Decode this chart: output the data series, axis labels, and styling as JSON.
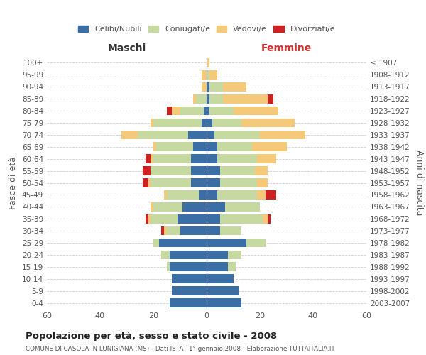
{
  "age_groups": [
    "0-4",
    "5-9",
    "10-14",
    "15-19",
    "20-24",
    "25-29",
    "30-34",
    "35-39",
    "40-44",
    "45-49",
    "50-54",
    "55-59",
    "60-64",
    "65-69",
    "70-74",
    "75-79",
    "80-84",
    "85-89",
    "90-94",
    "95-99",
    "100+"
  ],
  "birth_years": [
    "2003-2007",
    "1998-2002",
    "1993-1997",
    "1988-1992",
    "1983-1987",
    "1978-1982",
    "1973-1977",
    "1968-1972",
    "1963-1967",
    "1958-1962",
    "1953-1957",
    "1948-1952",
    "1943-1947",
    "1938-1942",
    "1933-1937",
    "1928-1932",
    "1923-1927",
    "1918-1922",
    "1913-1917",
    "1908-1912",
    "≤ 1907"
  ],
  "maschi_celibi": [
    14,
    13,
    13,
    14,
    14,
    18,
    10,
    11,
    9,
    3,
    6,
    6,
    6,
    5,
    7,
    2,
    1,
    0,
    0,
    0,
    0
  ],
  "maschi_coniugati": [
    0,
    0,
    0,
    1,
    3,
    2,
    5,
    10,
    11,
    12,
    15,
    15,
    14,
    14,
    19,
    18,
    9,
    4,
    0,
    0,
    0
  ],
  "maschi_vedovi": [
    0,
    0,
    0,
    0,
    0,
    0,
    1,
    1,
    1,
    1,
    1,
    0,
    1,
    1,
    6,
    1,
    3,
    1,
    2,
    2,
    0
  ],
  "maschi_divorziati": [
    0,
    0,
    0,
    0,
    0,
    0,
    1,
    1,
    0,
    0,
    2,
    3,
    2,
    0,
    0,
    0,
    2,
    0,
    0,
    0,
    0
  ],
  "femmine_celibi": [
    13,
    12,
    10,
    8,
    8,
    15,
    5,
    5,
    7,
    4,
    5,
    5,
    4,
    4,
    3,
    2,
    1,
    1,
    1,
    0,
    0
  ],
  "femmine_coniugati": [
    0,
    0,
    0,
    3,
    5,
    7,
    8,
    16,
    13,
    15,
    14,
    13,
    15,
    13,
    17,
    11,
    9,
    5,
    5,
    1,
    0
  ],
  "femmine_vedovi": [
    0,
    0,
    0,
    0,
    0,
    0,
    0,
    2,
    0,
    3,
    4,
    5,
    7,
    13,
    17,
    20,
    17,
    17,
    9,
    3,
    1
  ],
  "femmine_divorziati": [
    0,
    0,
    0,
    0,
    0,
    0,
    0,
    1,
    0,
    4,
    0,
    0,
    0,
    0,
    0,
    0,
    0,
    2,
    0,
    0,
    0
  ],
  "colors": {
    "celibi": "#3a6ea5",
    "coniugati": "#c5d9a0",
    "vedovi": "#f5c97a",
    "divorziati": "#cc2222"
  },
  "title": "Popolazione per età, sesso e stato civile - 2008",
  "subtitle": "COMUNE DI CASOLA IN LUNIGIANA (MS) - Dati ISTAT 1° gennaio 2008 - Elaborazione TUTTAITALIA.IT",
  "xlabel_left": "Maschi",
  "xlabel_right": "Femmine",
  "ylabel_left": "Fasce di età",
  "ylabel_right": "Anni di nascita",
  "xlim": 60,
  "bg_color": "#ffffff",
  "grid_color": "#cccccc"
}
